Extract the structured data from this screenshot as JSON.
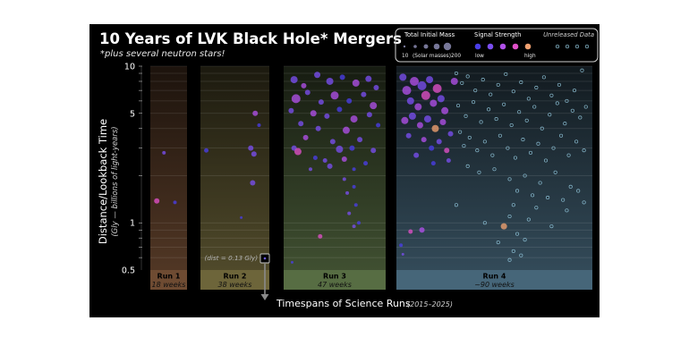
{
  "chart_data": {
    "type": "scatter",
    "title": "10 Years of LVK Black Hole* Mergers",
    "subtitle": "*plus several neutron stars!",
    "ylabel": "Distance/Lookback Time",
    "ylabel_sub": "(Gly — billions of light-years)",
    "xlabel": "Timespans of Science Runs",
    "xlabel_sub": "(2015–2025)",
    "y_scale": "log",
    "ylim": [
      0.5,
      10
    ],
    "y_ticks": [
      {
        "value": 10,
        "label": "10"
      },
      {
        "value": 5,
        "label": "5"
      },
      {
        "value": 1,
        "label": "1"
      },
      {
        "value": 0.5,
        "label": "0.5"
      }
    ],
    "runs": [
      {
        "name": "Run 1",
        "duration": "18 weeks",
        "color": "#c9885b"
      },
      {
        "name": "Run 2",
        "duration": "38 weeks",
        "color": "#c7b86a"
      },
      {
        "name": "Run 3",
        "duration": "47 weeks",
        "color": "#9fc67a"
      },
      {
        "name": "Run 4",
        "duration": "~90 weeks",
        "color": "#7fb9dd"
      }
    ],
    "annotation": {
      "text": "(dist = 0.13 Gly)",
      "value": 0.13,
      "run": "Run 2"
    },
    "legend": {
      "mass_title": "Total Initial Mass",
      "mass_min": "10",
      "mass_unit": "(Solar masses)",
      "mass_max": "200",
      "signal_title": "Signal Strength",
      "signal_low": "low",
      "signal_high": "high",
      "unreleased": "Unreleased Data",
      "signal_colors": [
        "#4a3ee8",
        "#7a4ef0",
        "#b050e8",
        "#e050c8",
        "#f0a070"
      ]
    },
    "series": [
      {
        "name": "Run 1",
        "points": [
          {
            "t": 0.35,
            "d": 2.8,
            "s": 0.2,
            "m": 2
          },
          {
            "t": 0.12,
            "d": 1.38,
            "s": 0.75,
            "m": 3
          },
          {
            "t": 0.7,
            "d": 1.35,
            "s": 0.1,
            "m": 2
          }
        ]
      },
      {
        "name": "Run 2",
        "points": [
          {
            "t": 0.05,
            "d": 2.9,
            "s": 0.1,
            "m": 2.5
          },
          {
            "t": 0.75,
            "d": 3.0,
            "s": 0.3,
            "m": 3
          },
          {
            "t": 0.8,
            "d": 2.75,
            "s": 0.2,
            "m": 3
          },
          {
            "t": 0.78,
            "d": 1.8,
            "s": 0.2,
            "m": 3
          },
          {
            "t": 0.82,
            "d": 5.0,
            "s": 0.4,
            "m": 3
          },
          {
            "t": 0.88,
            "d": 4.2,
            "s": 0.1,
            "m": 2
          },
          {
            "t": 0.6,
            "d": 1.08,
            "s": 0.1,
            "m": 1.5
          },
          {
            "t": 0.96,
            "d": 0.128,
            "s": 0.05,
            "m": 2
          }
        ]
      },
      {
        "name": "Run 3",
        "points": [
          {
            "t": 0.08,
            "d": 8.2,
            "s": 0.25,
            "m": 4
          },
          {
            "t": 0.18,
            "d": 7.5,
            "s": 0.4,
            "m": 3
          },
          {
            "t": 0.32,
            "d": 8.8,
            "s": 0.2,
            "m": 3.5
          },
          {
            "t": 0.45,
            "d": 8.0,
            "s": 0.3,
            "m": 4
          },
          {
            "t": 0.58,
            "d": 8.5,
            "s": 0.1,
            "m": 3
          },
          {
            "t": 0.72,
            "d": 7.8,
            "s": 0.4,
            "m": 4
          },
          {
            "t": 0.85,
            "d": 8.3,
            "s": 0.2,
            "m": 3.5
          },
          {
            "t": 0.93,
            "d": 7.3,
            "s": 0.3,
            "m": 3
          },
          {
            "t": 0.1,
            "d": 6.2,
            "s": 0.5,
            "m": 5
          },
          {
            "t": 0.22,
            "d": 6.8,
            "s": 0.3,
            "m": 3
          },
          {
            "t": 0.36,
            "d": 5.9,
            "s": 0.2,
            "m": 3
          },
          {
            "t": 0.5,
            "d": 6.5,
            "s": 0.5,
            "m": 4.5
          },
          {
            "t": 0.65,
            "d": 6.0,
            "s": 0.1,
            "m": 3
          },
          {
            "t": 0.8,
            "d": 6.6,
            "s": 0.3,
            "m": 3
          },
          {
            "t": 0.9,
            "d": 5.6,
            "s": 0.4,
            "m": 4
          },
          {
            "t": 0.05,
            "d": 5.2,
            "s": 0.2,
            "m": 3
          },
          {
            "t": 0.28,
            "d": 5.0,
            "s": 0.6,
            "m": 3.5
          },
          {
            "t": 0.42,
            "d": 4.8,
            "s": 0.3,
            "m": 3
          },
          {
            "t": 0.55,
            "d": 5.3,
            "s": 0.1,
            "m": 3
          },
          {
            "t": 0.7,
            "d": 4.6,
            "s": 0.4,
            "m": 4
          },
          {
            "t": 0.86,
            "d": 4.9,
            "s": 0.2,
            "m": 3
          },
          {
            "t": 0.15,
            "d": 4.3,
            "s": 0.3,
            "m": 3
          },
          {
            "t": 0.33,
            "d": 4.0,
            "s": 0.2,
            "m": 3
          },
          {
            "t": 0.62,
            "d": 3.9,
            "s": 0.5,
            "m": 4
          },
          {
            "t": 0.95,
            "d": 4.2,
            "s": 0.1,
            "m": 2.5
          },
          {
            "t": 0.2,
            "d": 3.5,
            "s": 0.4,
            "m": 3
          },
          {
            "t": 0.48,
            "d": 3.3,
            "s": 0.2,
            "m": 3
          },
          {
            "t": 0.76,
            "d": 3.4,
            "s": 0.3,
            "m": 3
          },
          {
            "t": 0.08,
            "d": 3.0,
            "s": 0.2,
            "m": 3
          },
          {
            "t": 0.12,
            "d": 2.85,
            "s": 0.8,
            "m": 4
          },
          {
            "t": 0.55,
            "d": 2.95,
            "s": 0.3,
            "m": 4
          },
          {
            "t": 0.68,
            "d": 3.0,
            "s": 0.1,
            "m": 3
          },
          {
            "t": 0.9,
            "d": 2.9,
            "s": 0.2,
            "m": 3
          },
          {
            "t": 0.3,
            "d": 2.6,
            "s": 0.1,
            "m": 2.5
          },
          {
            "t": 0.4,
            "d": 2.5,
            "s": 0.2,
            "m": 2.5
          },
          {
            "t": 0.6,
            "d": 2.55,
            "s": 0.4,
            "m": 3
          },
          {
            "t": 0.82,
            "d": 2.4,
            "s": 0.1,
            "m": 2.5
          },
          {
            "t": 0.45,
            "d": 2.3,
            "s": 0.3,
            "m": 3
          },
          {
            "t": 0.25,
            "d": 2.2,
            "s": 0.2,
            "m": 2
          },
          {
            "t": 0.7,
            "d": 2.2,
            "s": 0.1,
            "m": 2
          },
          {
            "t": 0.6,
            "d": 1.9,
            "s": 0.2,
            "m": 2
          },
          {
            "t": 0.7,
            "d": 1.7,
            "s": 0.1,
            "m": 2
          },
          {
            "t": 0.63,
            "d": 1.55,
            "s": 0.2,
            "m": 2
          },
          {
            "t": 0.72,
            "d": 1.3,
            "s": 0.1,
            "m": 2
          },
          {
            "t": 0.65,
            "d": 1.15,
            "s": 0.2,
            "m": 2
          },
          {
            "t": 0.75,
            "d": 1.0,
            "s": 0.1,
            "m": 2
          },
          {
            "t": 0.7,
            "d": 0.95,
            "s": 0.3,
            "m": 2
          },
          {
            "t": 0.35,
            "d": 0.82,
            "s": 0.7,
            "m": 2.5
          },
          {
            "t": 0.06,
            "d": 0.56,
            "s": 0.1,
            "m": 1.5
          }
        ]
      },
      {
        "name": "Run 4",
        "released": true,
        "points": [
          {
            "t": 0.02,
            "d": 8.5,
            "s": 0.3,
            "m": 4
          },
          {
            "t": 0.04,
            "d": 7.0,
            "s": 0.5,
            "m": 5
          },
          {
            "t": 0.06,
            "d": 6.0,
            "s": 0.2,
            "m": 4
          },
          {
            "t": 0.08,
            "d": 8.0,
            "s": 0.4,
            "m": 5
          },
          {
            "t": 0.1,
            "d": 5.5,
            "s": 0.6,
            "m": 4
          },
          {
            "t": 0.12,
            "d": 7.5,
            "s": 0.3,
            "m": 5
          },
          {
            "t": 0.14,
            "d": 6.5,
            "s": 0.8,
            "m": 5
          },
          {
            "t": 0.16,
            "d": 8.2,
            "s": 0.2,
            "m": 4
          },
          {
            "t": 0.18,
            "d": 5.8,
            "s": 0.5,
            "m": 4
          },
          {
            "t": 0.2,
            "d": 7.2,
            "s": 0.7,
            "m": 5
          },
          {
            "t": 0.22,
            "d": 6.2,
            "s": 0.3,
            "m": 4
          },
          {
            "t": 0.24,
            "d": 5.2,
            "s": 0.4,
            "m": 4
          },
          {
            "t": 0.03,
            "d": 4.5,
            "s": 0.5,
            "m": 4
          },
          {
            "t": 0.07,
            "d": 4.8,
            "s": 0.2,
            "m": 4
          },
          {
            "t": 0.11,
            "d": 4.2,
            "s": 0.6,
            "m": 3.5
          },
          {
            "t": 0.15,
            "d": 4.6,
            "s": 0.3,
            "m": 4
          },
          {
            "t": 0.19,
            "d": 4.0,
            "s": 0.9,
            "m": 4
          },
          {
            "t": 0.23,
            "d": 4.4,
            "s": 0.4,
            "m": 3.5
          },
          {
            "t": 0.05,
            "d": 3.6,
            "s": 0.2,
            "m": 3
          },
          {
            "t": 0.13,
            "d": 3.4,
            "s": 0.5,
            "m": 3
          },
          {
            "t": 0.21,
            "d": 3.3,
            "s": 0.3,
            "m": 3
          },
          {
            "t": 0.17,
            "d": 3.0,
            "s": 0.1,
            "m": 3
          },
          {
            "t": 0.25,
            "d": 2.9,
            "s": 0.8,
            "m": 3
          },
          {
            "t": 0.27,
            "d": 3.7,
            "s": 0.3,
            "m": 3
          },
          {
            "t": 0.09,
            "d": 2.7,
            "s": 0.2,
            "m": 3
          },
          {
            "t": 0.26,
            "d": 2.5,
            "s": 0.2,
            "m": 2.5
          },
          {
            "t": 0.29,
            "d": 8.0,
            "s": 0.4,
            "m": 4
          },
          {
            "t": 0.18,
            "d": 2.4,
            "s": 0.1,
            "m": 2.5
          },
          {
            "t": 0.01,
            "d": 0.72,
            "s": 0.1,
            "m": 2
          },
          {
            "t": 0.06,
            "d": 0.88,
            "s": 0.8,
            "m": 2.5
          },
          {
            "t": 0.12,
            "d": 0.9,
            "s": 0.4,
            "m": 3
          },
          {
            "t": 0.02,
            "d": 0.63,
            "s": 0.2,
            "m": 1.5
          },
          {
            "t": 0.55,
            "d": 0.95,
            "s": 1.0,
            "m": 3.5
          }
        ]
      },
      {
        "name": "Unreleased Data",
        "points": [
          {
            "t": 0.3,
            "d": 9.0
          },
          {
            "t": 0.33,
            "d": 7.8
          },
          {
            "t": 0.36,
            "d": 8.6
          },
          {
            "t": 0.4,
            "d": 7.0
          },
          {
            "t": 0.44,
            "d": 8.2
          },
          {
            "t": 0.48,
            "d": 6.6
          },
          {
            "t": 0.52,
            "d": 7.6
          },
          {
            "t": 0.56,
            "d": 8.9
          },
          {
            "t": 0.6,
            "d": 6.9
          },
          {
            "t": 0.64,
            "d": 7.9
          },
          {
            "t": 0.68,
            "d": 6.2
          },
          {
            "t": 0.72,
            "d": 7.3
          },
          {
            "t": 0.76,
            "d": 8.5
          },
          {
            "t": 0.8,
            "d": 6.5
          },
          {
            "t": 0.84,
            "d": 7.6
          },
          {
            "t": 0.88,
            "d": 6.0
          },
          {
            "t": 0.92,
            "d": 7.0
          },
          {
            "t": 0.96,
            "d": 9.4
          },
          {
            "t": 0.31,
            "d": 5.6
          },
          {
            "t": 0.35,
            "d": 4.8
          },
          {
            "t": 0.39,
            "d": 5.9
          },
          {
            "t": 0.43,
            "d": 4.4
          },
          {
            "t": 0.47,
            "d": 5.3
          },
          {
            "t": 0.51,
            "d": 4.6
          },
          {
            "t": 0.55,
            "d": 5.7
          },
          {
            "t": 0.59,
            "d": 4.2
          },
          {
            "t": 0.63,
            "d": 5.1
          },
          {
            "t": 0.67,
            "d": 4.5
          },
          {
            "t": 0.71,
            "d": 5.5
          },
          {
            "t": 0.75,
            "d": 4.0
          },
          {
            "t": 0.79,
            "d": 4.9
          },
          {
            "t": 0.83,
            "d": 5.8
          },
          {
            "t": 0.87,
            "d": 4.3
          },
          {
            "t": 0.91,
            "d": 5.2
          },
          {
            "t": 0.95,
            "d": 4.7
          },
          {
            "t": 0.98,
            "d": 5.5
          },
          {
            "t": 0.32,
            "d": 3.8
          },
          {
            "t": 0.34,
            "d": 3.1
          },
          {
            "t": 0.37,
            "d": 3.5
          },
          {
            "t": 0.41,
            "d": 2.9
          },
          {
            "t": 0.45,
            "d": 3.3
          },
          {
            "t": 0.49,
            "d": 2.7
          },
          {
            "t": 0.53,
            "d": 3.6
          },
          {
            "t": 0.57,
            "d": 3.0
          },
          {
            "t": 0.61,
            "d": 2.6
          },
          {
            "t": 0.65,
            "d": 3.4
          },
          {
            "t": 0.69,
            "d": 2.8
          },
          {
            "t": 0.73,
            "d": 3.2
          },
          {
            "t": 0.77,
            "d": 2.5
          },
          {
            "t": 0.81,
            "d": 3.0
          },
          {
            "t": 0.85,
            "d": 3.6
          },
          {
            "t": 0.89,
            "d": 2.7
          },
          {
            "t": 0.93,
            "d": 3.3
          },
          {
            "t": 0.97,
            "d": 2.9
          },
          {
            "t": 0.36,
            "d": 2.3
          },
          {
            "t": 0.42,
            "d": 2.1
          },
          {
            "t": 0.5,
            "d": 2.2
          },
          {
            "t": 0.58,
            "d": 1.9
          },
          {
            "t": 0.66,
            "d": 2.0
          },
          {
            "t": 0.74,
            "d": 1.8
          },
          {
            "t": 0.82,
            "d": 2.1
          },
          {
            "t": 0.9,
            "d": 1.7
          },
          {
            "t": 0.62,
            "d": 1.6
          },
          {
            "t": 0.7,
            "d": 1.5
          },
          {
            "t": 0.78,
            "d": 1.45
          },
          {
            "t": 0.86,
            "d": 1.4
          },
          {
            "t": 0.94,
            "d": 1.6
          },
          {
            "t": 0.6,
            "d": 1.3
          },
          {
            "t": 0.72,
            "d": 1.25
          },
          {
            "t": 0.88,
            "d": 1.2
          },
          {
            "t": 0.97,
            "d": 1.35
          },
          {
            "t": 0.58,
            "d": 1.1
          },
          {
            "t": 0.68,
            "d": 1.05
          },
          {
            "t": 0.3,
            "d": 1.3
          },
          {
            "t": 0.45,
            "d": 1.0
          },
          {
            "t": 0.8,
            "d": 0.95
          },
          {
            "t": 0.62,
            "d": 0.85
          },
          {
            "t": 0.66,
            "d": 0.78
          },
          {
            "t": 0.52,
            "d": 0.75
          },
          {
            "t": 0.6,
            "d": 0.66
          },
          {
            "t": 0.64,
            "d": 0.62
          },
          {
            "t": 0.58,
            "d": 0.58
          }
        ]
      }
    ]
  }
}
